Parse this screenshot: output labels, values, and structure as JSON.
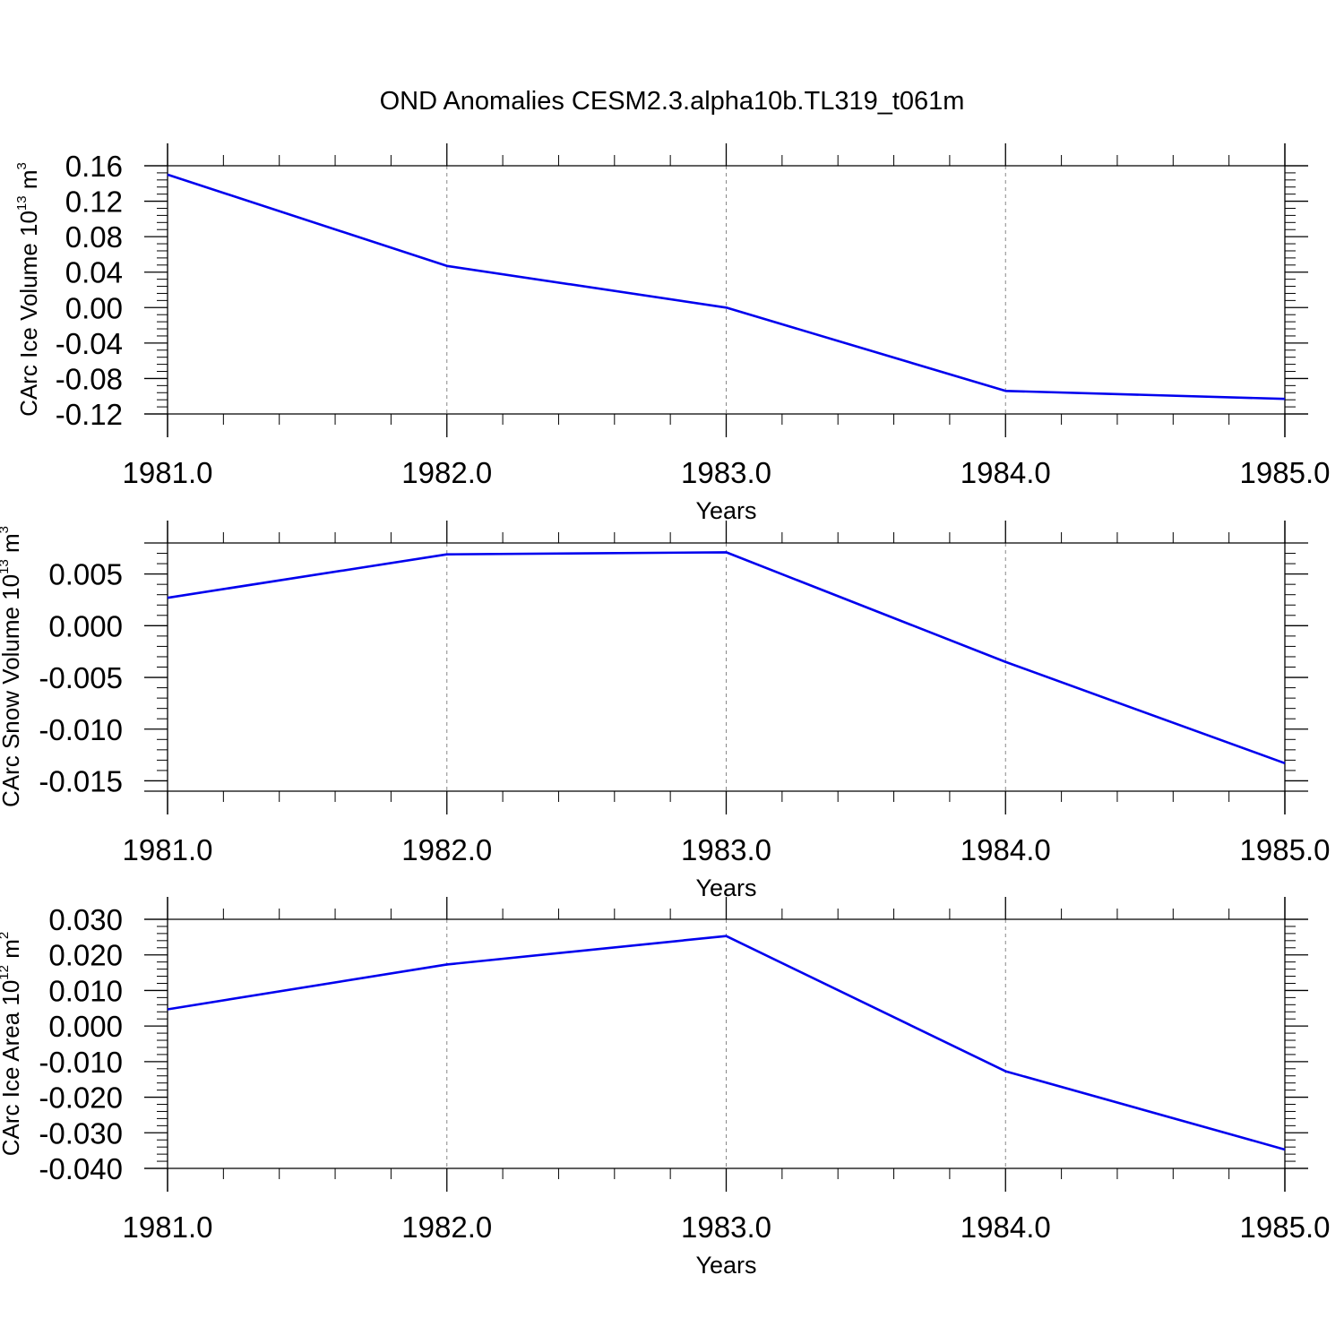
{
  "chart_data": {
    "title": "OND Anomalies CESM2.3.alpha10b.TL319_t061m",
    "panels": [
      {
        "type": "line",
        "ylabel": {
          "text": "CArc Ice Volume 10",
          "exponent": "13",
          "unit": "m",
          "unit_exponent": "3"
        },
        "xlabel": "Years",
        "xlim": [
          1981,
          1985
        ],
        "ylim": [
          -0.12,
          0.16
        ],
        "x_ticks": [
          "1981.0",
          "1982.0",
          "1983.0",
          "1984.0",
          "1985.0"
        ],
        "y_ticks": [
          "0.16",
          "0.12",
          "0.08",
          "0.04",
          "0.00",
          "-0.04",
          "-0.08",
          "-0.12"
        ],
        "x": [
          1981,
          1982,
          1983,
          1984,
          1985
        ],
        "values": [
          0.15,
          0.047,
          0.0,
          -0.094,
          -0.103
        ],
        "color": "#0000ee",
        "grid": "vertical dashed"
      },
      {
        "type": "line",
        "ylabel": {
          "text": "CArc Snow Volume 10",
          "exponent": "13",
          "unit": "m",
          "unit_exponent": "3"
        },
        "xlabel": "Years",
        "xlim": [
          1981,
          1985
        ],
        "ylim": [
          -0.016,
          0.008
        ],
        "x_ticks": [
          "1981.0",
          "1982.0",
          "1983.0",
          "1984.0",
          "1985.0"
        ],
        "y_ticks": [
          "0.005",
          "0.000",
          "-0.005",
          "-0.010",
          "-0.015"
        ],
        "x": [
          1981,
          1982,
          1983,
          1984,
          1985
        ],
        "values": [
          0.0027,
          0.0069,
          0.0071,
          -0.0035,
          -0.0133
        ],
        "color": "#0000ee",
        "grid": "vertical dashed"
      },
      {
        "type": "line",
        "ylabel": {
          "text": "CArc Ice Area 10",
          "exponent": "12",
          "unit": "m",
          "unit_exponent": "2"
        },
        "xlabel": "Years",
        "xlim": [
          1981,
          1985
        ],
        "ylim": [
          -0.04,
          0.03
        ],
        "x_ticks": [
          "1981.0",
          "1982.0",
          "1983.0",
          "1984.0",
          "1985.0"
        ],
        "y_ticks": [
          "0.030",
          "0.020",
          "0.010",
          "0.000",
          "-0.010",
          "-0.020",
          "-0.030",
          "-0.040"
        ],
        "x": [
          1981,
          1982,
          1983,
          1984,
          1985
        ],
        "values": [
          0.0047,
          0.0173,
          0.0253,
          -0.0127,
          -0.0347
        ],
        "color": "#0000ee",
        "grid": "vertical dashed"
      }
    ]
  }
}
